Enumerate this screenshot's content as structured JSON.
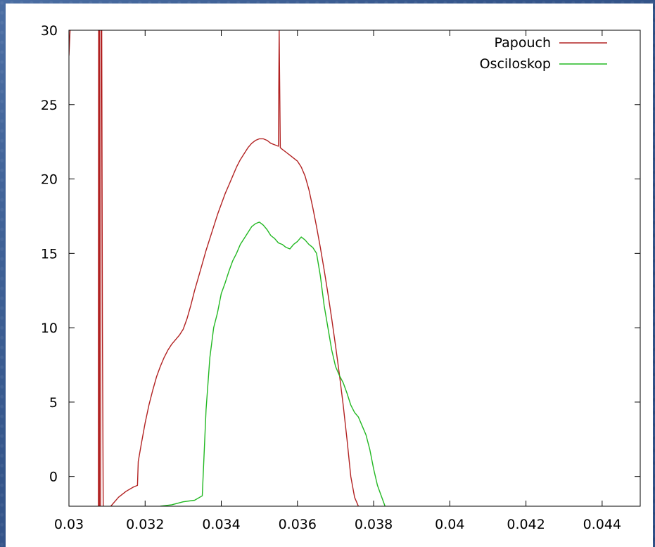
{
  "chart_data": {
    "type": "line",
    "xlim": [
      0.03,
      0.045
    ],
    "ylim": [
      -2,
      30
    ],
    "x_ticks": [
      "0.03",
      "0.032",
      "0.034",
      "0.036",
      "0.038",
      "0.04",
      "0.042",
      "0.044"
    ],
    "x_tick_values": [
      0.03,
      0.032,
      0.034,
      0.036,
      0.038,
      0.04,
      0.042,
      0.044
    ],
    "y_ticks": [
      "0",
      "5",
      "10",
      "15",
      "20",
      "25",
      "30"
    ],
    "y_tick_values": [
      0,
      5,
      10,
      15,
      20,
      25,
      30
    ],
    "grid": false,
    "legend_position": "top-right",
    "series": [
      {
        "name": "Papouch",
        "color": "#b22222",
        "points": [
          [
            0.03,
            28.3
          ],
          [
            0.03002,
            30
          ],
          [
            0.03003,
            30
          ]
        ],
        "segments": [
          [
            [
              0.03,
              28.3
            ],
            [
              0.03003,
              30
            ]
          ],
          [
            [
              0.03077,
              -2
            ],
            [
              0.03078,
              30
            ],
            [
              0.0308,
              30
            ],
            [
              0.0308,
              -2
            ]
          ],
          [
            [
              0.03083,
              -2
            ],
            [
              0.03084,
              30
            ],
            [
              0.03086,
              30
            ],
            [
              0.03088,
              10
            ],
            [
              0.0309,
              -2
            ]
          ],
          [
            [
              0.0311,
              -2
            ],
            [
              0.0313,
              -1.4
            ],
            [
              0.0315,
              -1.0
            ],
            [
              0.0317,
              -0.7
            ],
            [
              0.0318,
              -0.6
            ],
            [
              0.03182,
              1.0
            ],
            [
              0.0319,
              2.2
            ],
            [
              0.032,
              3.6
            ],
            [
              0.0321,
              4.8
            ],
            [
              0.0322,
              5.8
            ],
            [
              0.0323,
              6.7
            ],
            [
              0.0324,
              7.4
            ],
            [
              0.0325,
              8.0
            ],
            [
              0.0326,
              8.5
            ],
            [
              0.0327,
              8.9
            ],
            [
              0.0328,
              9.2
            ],
            [
              0.0329,
              9.5
            ],
            [
              0.033,
              9.9
            ],
            [
              0.0331,
              10.6
            ],
            [
              0.0332,
              11.5
            ],
            [
              0.0333,
              12.5
            ],
            [
              0.0334,
              13.4
            ],
            [
              0.0335,
              14.3
            ],
            [
              0.0336,
              15.2
            ],
            [
              0.0337,
              16.0
            ],
            [
              0.0338,
              16.8
            ],
            [
              0.0339,
              17.6
            ],
            [
              0.034,
              18.3
            ],
            [
              0.0341,
              19.0
            ],
            [
              0.0342,
              19.6
            ],
            [
              0.0343,
              20.2
            ],
            [
              0.0344,
              20.8
            ],
            [
              0.0345,
              21.3
            ],
            [
              0.0346,
              21.7
            ],
            [
              0.0347,
              22.1
            ],
            [
              0.0348,
              22.4
            ],
            [
              0.0349,
              22.6
            ],
            [
              0.035,
              22.7
            ],
            [
              0.0351,
              22.7
            ],
            [
              0.0352,
              22.6
            ],
            [
              0.0353,
              22.4
            ],
            [
              0.0354,
              22.3
            ],
            [
              0.0355,
              22.2
            ],
            [
              0.03552,
              30
            ],
            [
              0.03555,
              22.1
            ],
            [
              0.0356,
              22.0
            ],
            [
              0.0357,
              21.8
            ],
            [
              0.0358,
              21.6
            ],
            [
              0.0359,
              21.4
            ],
            [
              0.036,
              21.2
            ],
            [
              0.0361,
              20.8
            ],
            [
              0.0362,
              20.2
            ],
            [
              0.0363,
              19.3
            ],
            [
              0.0364,
              18.1
            ],
            [
              0.0365,
              16.8
            ],
            [
              0.0366,
              15.4
            ],
            [
              0.0367,
              13.9
            ],
            [
              0.0368,
              12.3
            ],
            [
              0.0369,
              10.6
            ],
            [
              0.037,
              8.8
            ],
            [
              0.0371,
              6.9
            ],
            [
              0.0372,
              4.8
            ],
            [
              0.0373,
              2.5
            ],
            [
              0.0374,
              0.0
            ],
            [
              0.0375,
              -1.4
            ],
            [
              0.0376,
              -2
            ]
          ]
        ]
      },
      {
        "name": "Osciloskop",
        "color": "#22b822",
        "segments": [
          [
            [
              0.0324,
              -2
            ],
            [
              0.0327,
              -1.9
            ],
            [
              0.033,
              -1.7
            ],
            [
              0.0333,
              -1.6
            ],
            [
              0.0335,
              -1.3
            ],
            [
              0.0336,
              4.5
            ],
            [
              0.0337,
              8.0
            ],
            [
              0.0338,
              10.0
            ],
            [
              0.0339,
              11.0
            ],
            [
              0.034,
              12.3
            ],
            [
              0.0341,
              13.0
            ],
            [
              0.0342,
              13.8
            ],
            [
              0.0343,
              14.5
            ],
            [
              0.0344,
              15.0
            ],
            [
              0.0345,
              15.6
            ],
            [
              0.0346,
              16.0
            ],
            [
              0.0347,
              16.4
            ],
            [
              0.0348,
              16.8
            ],
            [
              0.0349,
              17.0
            ],
            [
              0.035,
              17.1
            ],
            [
              0.0351,
              16.9
            ],
            [
              0.0352,
              16.6
            ],
            [
              0.0353,
              16.2
            ],
            [
              0.0354,
              16.0
            ],
            [
              0.0355,
              15.7
            ],
            [
              0.0356,
              15.6
            ],
            [
              0.0357,
              15.4
            ],
            [
              0.0358,
              15.3
            ],
            [
              0.0359,
              15.6
            ],
            [
              0.036,
              15.8
            ],
            [
              0.0361,
              16.1
            ],
            [
              0.0362,
              15.9
            ],
            [
              0.0363,
              15.6
            ],
            [
              0.0364,
              15.4
            ],
            [
              0.0365,
              15.0
            ],
            [
              0.0366,
              13.5
            ],
            [
              0.0367,
              11.5
            ],
            [
              0.0368,
              10.0
            ],
            [
              0.0369,
              8.5
            ],
            [
              0.037,
              7.4
            ],
            [
              0.0371,
              6.8
            ],
            [
              0.0372,
              6.3
            ],
            [
              0.0373,
              5.6
            ],
            [
              0.0374,
              4.8
            ],
            [
              0.0375,
              4.3
            ],
            [
              0.0376,
              4.0
            ],
            [
              0.0377,
              3.4
            ],
            [
              0.0378,
              2.8
            ],
            [
              0.0379,
              1.8
            ],
            [
              0.038,
              0.5
            ],
            [
              0.0381,
              -0.6
            ],
            [
              0.0382,
              -1.3
            ],
            [
              0.0383,
              -2
            ]
          ]
        ]
      }
    ]
  }
}
